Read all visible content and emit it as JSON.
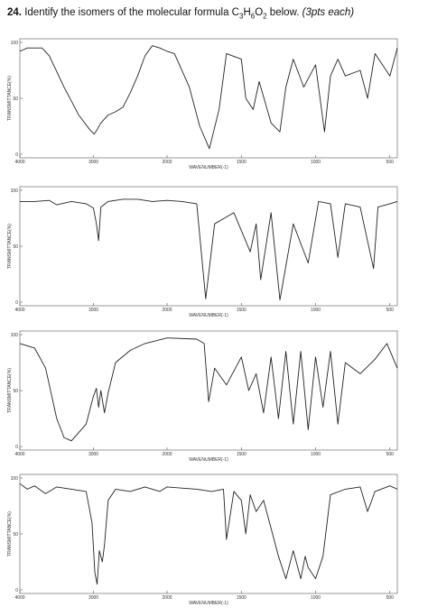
{
  "question": {
    "number": "24.",
    "text": [
      "Identify the isomers of the molecular formula C",
      "3",
      "H",
      "6",
      "O",
      "2",
      " below. "
    ],
    "note": "(3pts each)"
  },
  "chart_data": [
    {
      "type": "line",
      "xlabel": "WAVENUMBER(-1)",
      "ylabel": "TRANSMITTANCE(%)",
      "xlim": [
        4000,
        450
      ],
      "ylim": [
        0,
        100
      ],
      "xticks": [
        4000,
        3000,
        2000,
        1500,
        1000,
        500
      ],
      "yticks": [
        0,
        50,
        100
      ],
      "color": "#222222",
      "x": [
        4000,
        3900,
        3700,
        3600,
        3400,
        3200,
        3050,
        2990,
        2950,
        2900,
        2800,
        2700,
        2600,
        2500,
        2400,
        2300,
        2200,
        2100,
        2000,
        1950,
        1850,
        1780,
        1715,
        1650,
        1600,
        1500,
        1470,
        1420,
        1380,
        1300,
        1240,
        1200,
        1150,
        1080,
        1000,
        940,
        900,
        850,
        800,
        700,
        650,
        600,
        500,
        450
      ],
      "values": [
        92,
        95,
        95,
        88,
        60,
        35,
        22,
        18,
        22,
        28,
        35,
        38,
        42,
        55,
        70,
        88,
        97,
        95,
        92,
        90,
        60,
        25,
        5,
        40,
        90,
        85,
        50,
        40,
        65,
        28,
        20,
        60,
        85,
        60,
        80,
        20,
        70,
        85,
        70,
        75,
        50,
        90,
        70,
        95
      ]
    },
    {
      "type": "line",
      "xlabel": "WAVENUMBER(-1)",
      "ylabel": "TRANSMITTANCE(%)",
      "xlim": [
        4000,
        450
      ],
      "ylim": [
        0,
        100
      ],
      "xticks": [
        4000,
        3000,
        2000,
        1500,
        1000,
        500
      ],
      "yticks": [
        0,
        50,
        100
      ],
      "color": "#222222",
      "x": [
        4000,
        3800,
        3600,
        3500,
        3300,
        3100,
        3000,
        2960,
        2930,
        2900,
        2800,
        2600,
        2400,
        2200,
        2000,
        1900,
        1800,
        1740,
        1680,
        1550,
        1440,
        1400,
        1370,
        1300,
        1240,
        1150,
        1050,
        980,
        900,
        850,
        800,
        700,
        610,
        580,
        500,
        450
      ],
      "values": [
        90,
        90,
        91,
        87,
        90,
        88,
        84,
        70,
        55,
        85,
        90,
        92,
        92,
        90,
        91,
        90,
        88,
        3,
        70,
        80,
        45,
        70,
        20,
        80,
        2,
        70,
        35,
        90,
        88,
        40,
        88,
        85,
        30,
        85,
        88,
        90
      ]
    },
    {
      "type": "line",
      "xlabel": "WAVENUMBER(-1)",
      "ylabel": "TRANSMITTANCE(%)",
      "xlim": [
        4000,
        450
      ],
      "ylim": [
        0,
        100
      ],
      "xticks": [
        4000,
        3000,
        2000,
        1500,
        1000,
        500
      ],
      "yticks": [
        0,
        50,
        100
      ],
      "color": "#222222",
      "x": [
        4000,
        3800,
        3650,
        3500,
        3400,
        3300,
        3100,
        3000,
        2960,
        2930,
        2900,
        2850,
        2800,
        2700,
        2500,
        2300,
        2000,
        1800,
        1750,
        1720,
        1680,
        1600,
        1500,
        1450,
        1400,
        1350,
        1300,
        1250,
        1200,
        1150,
        1100,
        1050,
        1000,
        950,
        900,
        850,
        800,
        700,
        600,
        520,
        450
      ],
      "values": [
        92,
        88,
        70,
        25,
        8,
        5,
        20,
        45,
        52,
        35,
        50,
        30,
        48,
        75,
        86,
        92,
        97,
        96,
        92,
        40,
        70,
        55,
        80,
        50,
        65,
        30,
        80,
        25,
        85,
        20,
        85,
        15,
        80,
        35,
        85,
        20,
        75,
        65,
        78,
        92,
        70
      ]
    },
    {
      "type": "line",
      "xlabel": "WAVENUMBER(-1)",
      "ylabel": "TRANSMITTANCE(%)",
      "xlim": [
        4000,
        450
      ],
      "ylim": [
        0,
        100
      ],
      "xticks": [
        4000,
        3000,
        2000,
        1500,
        1000,
        500
      ],
      "yticks": [
        0,
        50,
        100
      ],
      "color": "#222222",
      "x": [
        4000,
        3900,
        3800,
        3650,
        3500,
        3300,
        3100,
        3020,
        2980,
        2950,
        2920,
        2880,
        2850,
        2800,
        2700,
        2500,
        2300,
        2100,
        2000,
        1800,
        1700,
        1620,
        1600,
        1550,
        1500,
        1470,
        1440,
        1400,
        1350,
        1300,
        1250,
        1200,
        1150,
        1100,
        1070,
        1050,
        1000,
        950,
        900,
        800,
        700,
        650,
        600,
        500,
        450
      ],
      "values": [
        95,
        90,
        93,
        86,
        92,
        90,
        88,
        60,
        15,
        5,
        35,
        25,
        40,
        80,
        90,
        88,
        92,
        88,
        92,
        90,
        88,
        90,
        45,
        88,
        80,
        50,
        85,
        70,
        80,
        55,
        30,
        10,
        35,
        10,
        30,
        20,
        10,
        30,
        85,
        90,
        92,
        70,
        88,
        93,
        90
      ]
    }
  ]
}
